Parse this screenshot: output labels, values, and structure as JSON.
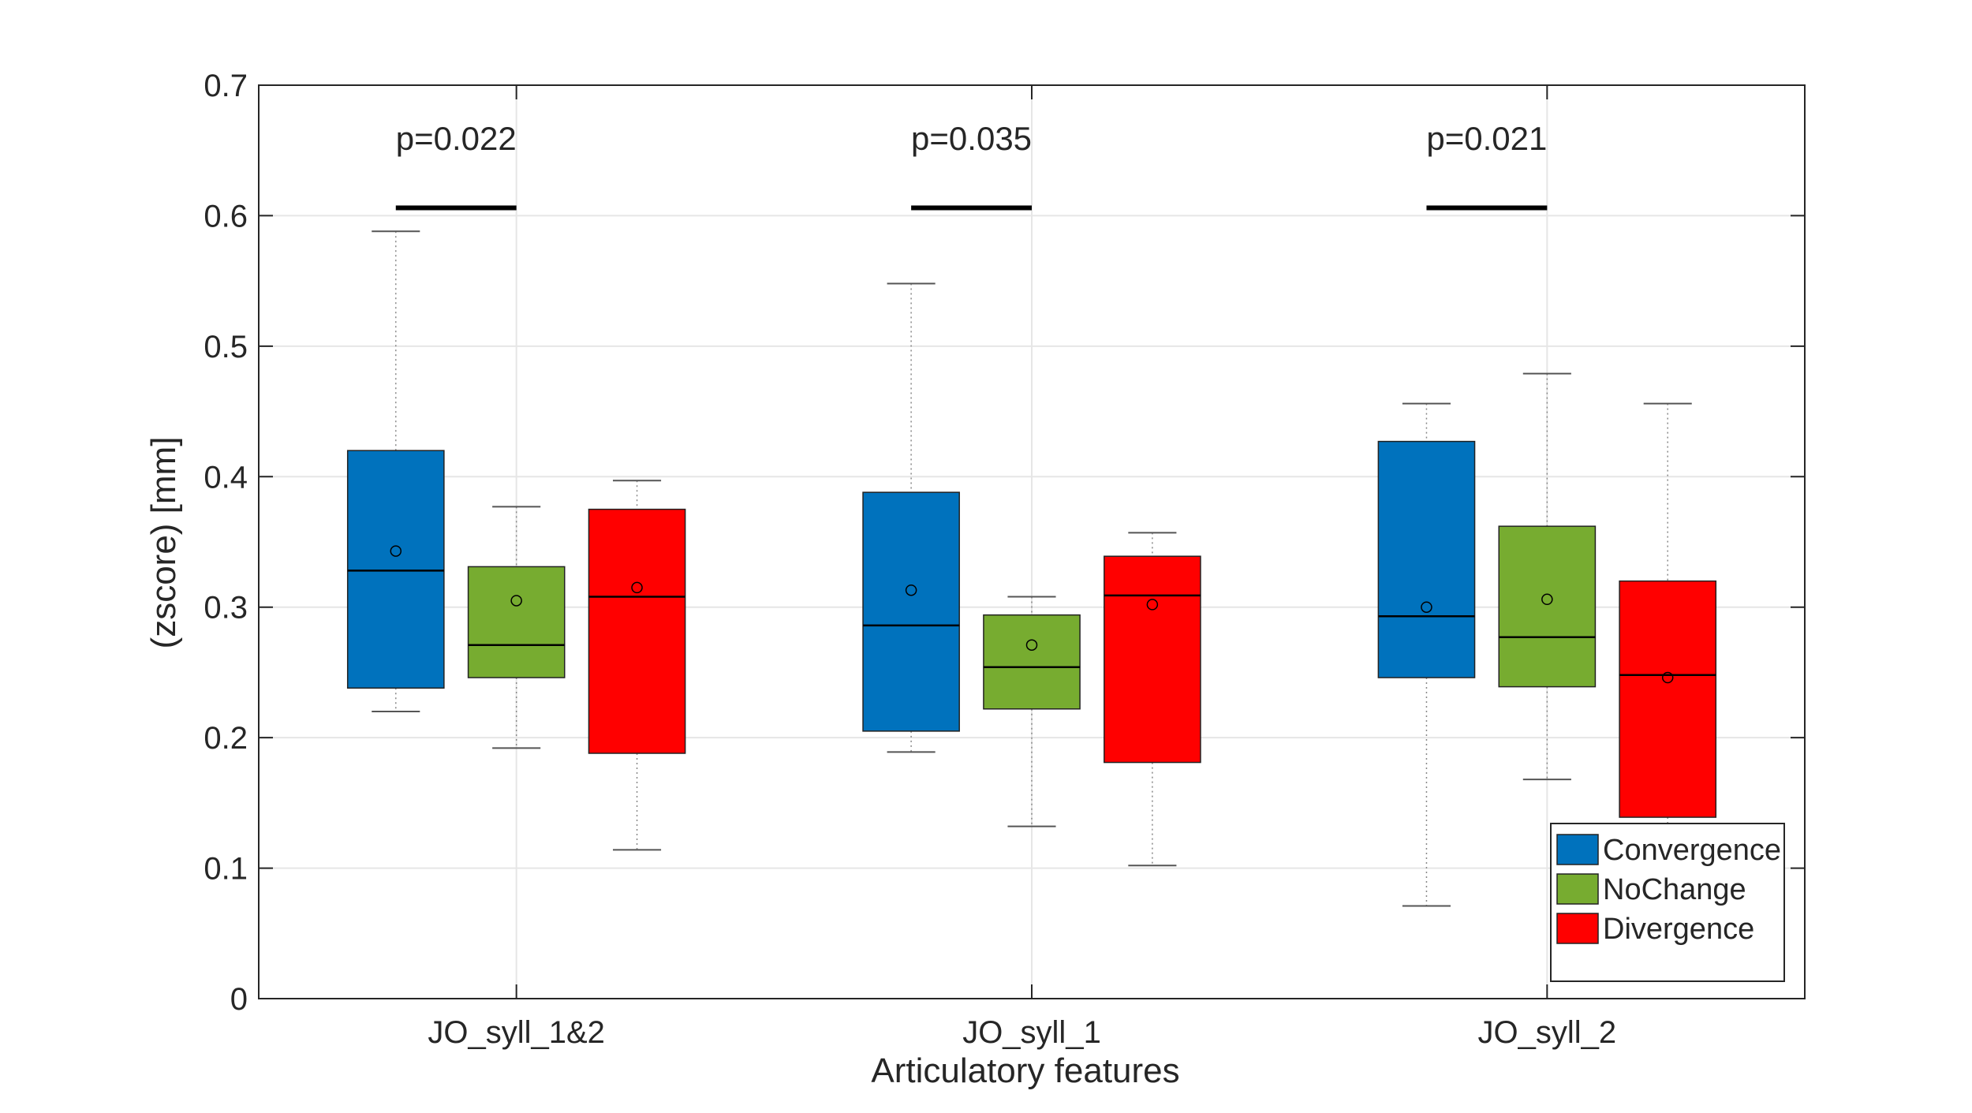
{
  "chart_data": {
    "type": "boxplot",
    "title": "",
    "xlabel": "Articulatory features",
    "ylabel": "(zscore) [mm]",
    "ylim": [
      0,
      0.7
    ],
    "yticks": [
      0,
      0.1,
      0.2,
      0.3,
      0.4,
      0.5,
      0.6,
      0.7
    ],
    "ytick_labels": [
      "0",
      "0.1",
      "0.2",
      "0.3",
      "0.4",
      "0.5",
      "0.6",
      "0.7"
    ],
    "grid": true,
    "legend_position": "bottom-right",
    "categories": [
      "JO_syll_1&2",
      "JO_syll_1",
      "JO_syll_2"
    ],
    "series": [
      {
        "name": "Convergence",
        "color": "#0072BD",
        "boxes": [
          {
            "whisker_low": 0.22,
            "q1": 0.238,
            "median": 0.328,
            "q3": 0.42,
            "whisker_high": 0.588,
            "mean": 0.343
          },
          {
            "whisker_low": 0.189,
            "q1": 0.205,
            "median": 0.286,
            "q3": 0.388,
            "whisker_high": 0.548,
            "mean": 0.313
          },
          {
            "whisker_low": 0.071,
            "q1": 0.246,
            "median": 0.293,
            "q3": 0.427,
            "whisker_high": 0.456,
            "mean": 0.3
          }
        ]
      },
      {
        "name": "NoChange",
        "color": "#77AC30",
        "boxes": [
          {
            "whisker_low": 0.192,
            "q1": 0.246,
            "median": 0.271,
            "q3": 0.331,
            "whisker_high": 0.377,
            "mean": 0.305
          },
          {
            "whisker_low": 0.132,
            "q1": 0.222,
            "median": 0.254,
            "q3": 0.294,
            "whisker_high": 0.308,
            "mean": 0.271
          },
          {
            "whisker_low": 0.168,
            "q1": 0.239,
            "median": 0.277,
            "q3": 0.362,
            "whisker_high": 0.479,
            "mean": 0.306
          }
        ]
      },
      {
        "name": "Divergence",
        "color": "#FF0000",
        "boxes": [
          {
            "whisker_low": 0.114,
            "q1": 0.188,
            "median": 0.308,
            "q3": 0.375,
            "whisker_high": 0.397,
            "mean": 0.315
          },
          {
            "whisker_low": 0.102,
            "q1": 0.181,
            "median": 0.309,
            "q3": 0.339,
            "whisker_high": 0.357,
            "mean": 0.302
          },
          {
            "whisker_low": 0.126,
            "q1": 0.139,
            "median": 0.248,
            "q3": 0.32,
            "whisker_high": 0.456,
            "mean": 0.246
          }
        ]
      }
    ],
    "annotations": [
      {
        "category": "JO_syll_1&2",
        "text": "p=0.022",
        "bar_y": 0.606
      },
      {
        "category": "JO_syll_1",
        "text": "p=0.035",
        "bar_y": 0.606
      },
      {
        "category": "JO_syll_2",
        "text": "p=0.021",
        "bar_y": 0.606
      }
    ]
  }
}
